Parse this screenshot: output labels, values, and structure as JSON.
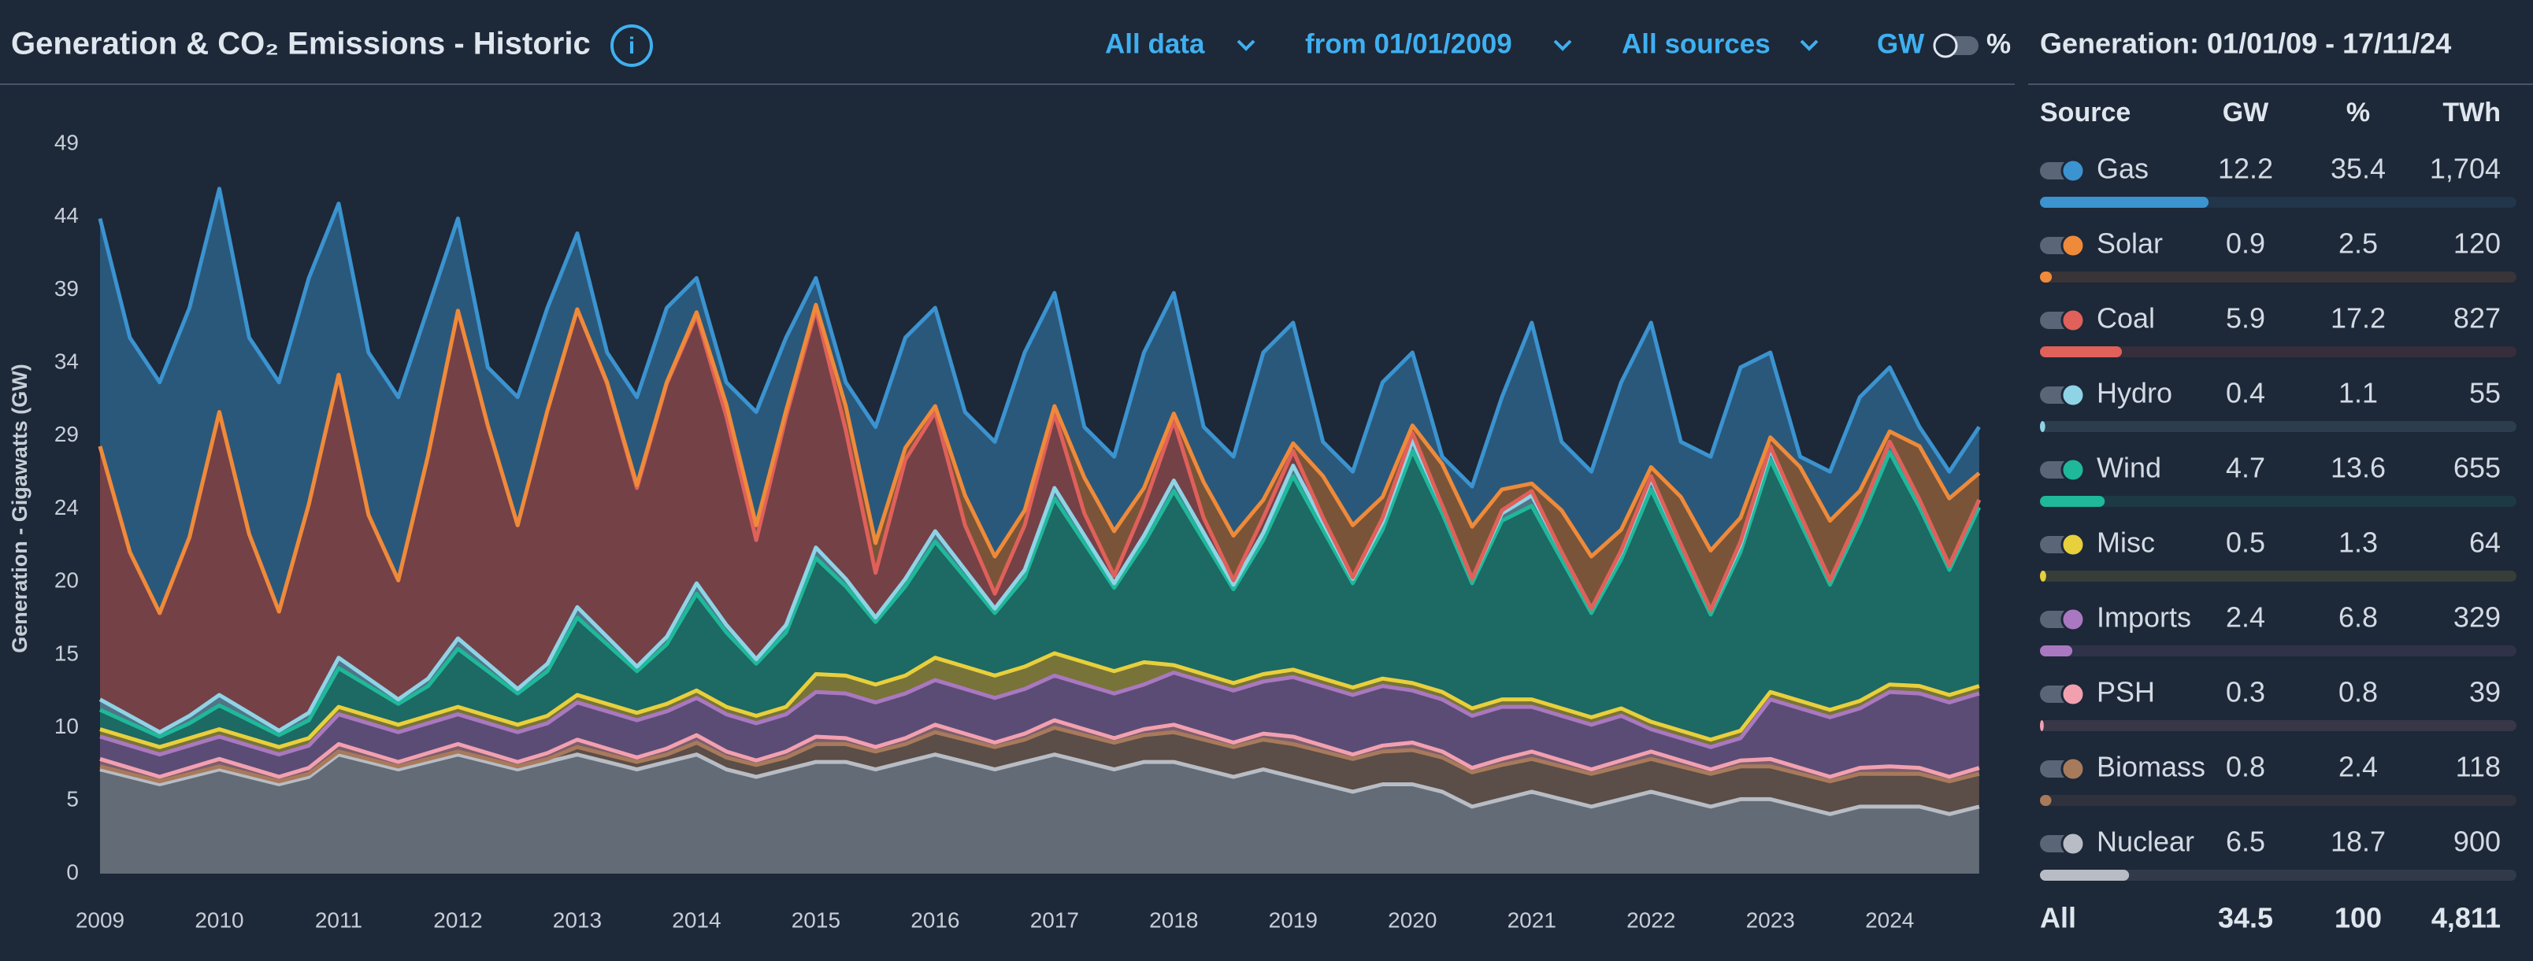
{
  "header": {
    "title": "Generation & CO₂ Emissions - Historic",
    "controls": [
      "All data",
      "from 01/01/2009",
      "All sources"
    ],
    "unit_toggle": [
      "GW",
      "%"
    ]
  },
  "chart_data": {
    "type": "area",
    "stacked": true,
    "y_label": "Generation - Gigawatts (GW)",
    "x": [
      2009,
      2009.25,
      2009.5,
      2009.75,
      2010,
      2010.25,
      2010.5,
      2010.75,
      2011,
      2011.25,
      2011.5,
      2011.75,
      2012,
      2012.25,
      2012.5,
      2012.75,
      2013,
      2013.25,
      2013.5,
      2013.75,
      2014,
      2014.25,
      2014.5,
      2014.75,
      2015,
      2015.25,
      2015.5,
      2015.75,
      2016,
      2016.25,
      2016.5,
      2016.75,
      2017,
      2017.25,
      2017.5,
      2017.75,
      2018,
      2018.25,
      2018.5,
      2018.75,
      2019,
      2019.25,
      2019.5,
      2019.75,
      2020,
      2020.25,
      2020.5,
      2020.75,
      2021,
      2021.25,
      2021.5,
      2021.75,
      2022,
      2022.25,
      2022.5,
      2022.75,
      2023,
      2023.25,
      2023.5,
      2023.75,
      2024,
      2024.25,
      2024.5,
      2024.75
    ],
    "xlim": [
      2009,
      2024.87
    ],
    "xticks": [
      2009,
      2010,
      2011,
      2012,
      2013,
      2014,
      2015,
      2016,
      2017,
      2018,
      2019,
      2020,
      2021,
      2022,
      2023,
      2024
    ],
    "ylim": [
      0,
      49
    ],
    "yticks": [
      0,
      {
        "value": 4.9,
        "label": "5"
      },
      {
        "value": 9.8,
        "label": "10"
      },
      {
        "value": 14.7,
        "label": "15"
      },
      {
        "value": 19.6,
        "label": "20"
      },
      {
        "value": 24.5,
        "label": "24"
      },
      {
        "value": 29.4,
        "label": "29"
      },
      {
        "value": 34.3,
        "label": "34"
      },
      {
        "value": 39.2,
        "label": "39"
      },
      {
        "value": 44.1,
        "label": "44"
      },
      49
    ],
    "series": [
      {
        "name": "Gas",
        "color": "#3b93cf",
        "values": [
          15.3,
          14.4,
          15.5,
          15.4,
          15,
          13.2,
          15.4,
          15.2,
          11.5,
          10.9,
          12.3,
          9.9,
          6.2,
          3.9,
          8.6,
          6.9,
          5.1,
          2,
          5.9,
          5,
          2.3,
          1.5,
          7.6,
          4.9,
          1.8,
          1.6,
          7.8,
          7.4,
          6.6,
          5.6,
          7.7,
          10.6,
          7.6,
          3.4,
          5,
          9.1,
          8.1,
          3.7,
          5.3,
          9.9,
          8.1,
          2.3,
          3.6,
          7.7,
          4.9,
          0.5,
          2.7,
          6.2,
          10.8,
          4.6,
          5.7,
          9.9,
          9.7,
          3.7,
          6.3,
          10.1,
          5.7,
          0.7,
          3.3,
          6.3,
          4.3,
          1.3,
          1.8,
          3.1
        ]
      },
      {
        "name": "Solar",
        "color": "#ee8a3a",
        "values": [
          0,
          0,
          0,
          0,
          0,
          0,
          0,
          0,
          0,
          0,
          0,
          0,
          0,
          0,
          0,
          0,
          0,
          0.1,
          0.2,
          0.1,
          0.2,
          0.8,
          1,
          0.4,
          0.3,
          1.6,
          2,
          0.8,
          0.4,
          2,
          2.5,
          1,
          0.5,
          2.4,
          3,
          1.2,
          0.5,
          2.4,
          3,
          1.2,
          0.5,
          2.8,
          3.5,
          1.4,
          0.5,
          2.8,
          3.5,
          1.4,
          0.5,
          2.8,
          3.5,
          1.4,
          0.6,
          3.2,
          4,
          1.6,
          0.6,
          3.2,
          4,
          1.6,
          0.7,
          3.6,
          4.5,
          1.8
        ]
      },
      {
        "name": "Coal",
        "color": "#e0605a",
        "values": [
          17,
          11,
          8,
          12,
          19,
          12,
          8,
          14,
          19,
          11,
          8,
          15,
          22,
          16,
          11,
          17,
          20,
          17,
          12,
          17,
          18,
          14,
          8,
          14,
          16,
          10,
          3,
          8,
          8,
          3,
          1,
          3,
          5,
          1.5,
          0.5,
          2,
          4,
          1,
          0.3,
          1,
          1,
          0.3,
          0.1,
          0.3,
          0.5,
          0,
          0,
          0.2,
          0.3,
          0,
          0,
          0.1,
          0.2,
          0,
          0,
          0.2,
          0.2,
          0,
          0,
          0,
          0,
          0,
          0,
          0
        ]
      },
      {
        "name": "Hydro",
        "color": "#8fd3e6",
        "values": [
          0.7,
          0.5,
          0.3,
          0.5,
          0.7,
          0.5,
          0.3,
          0.5,
          0.7,
          0.5,
          0.3,
          0.5,
          0.7,
          0.5,
          0.3,
          0.5,
          0.7,
          0.5,
          0.3,
          0.5,
          0.7,
          0.5,
          0.3,
          0.5,
          0.7,
          0.5,
          0.3,
          0.5,
          0.7,
          0.5,
          0.3,
          0.5,
          0.7,
          0.5,
          0.3,
          0.5,
          0.7,
          0.5,
          0.3,
          0.5,
          0.7,
          0.5,
          0.3,
          0.5,
          0.7,
          0.5,
          0.3,
          0.5,
          0.7,
          0.5,
          0.3,
          0.5,
          0.7,
          0.5,
          0.3,
          0.5,
          0.7,
          0.5,
          0.3,
          0.5,
          0.7,
          0.5,
          0.3,
          0.5
        ]
      },
      {
        "name": "Wind",
        "color": "#1fb89a",
        "values": [
          1.3,
          1,
          0.7,
          1,
          1.6,
          1.2,
          0.8,
          1.2,
          2.6,
          2,
          1.4,
          2,
          3.9,
          3,
          2.1,
          3,
          5.2,
          4,
          2.8,
          4,
          6.5,
          5,
          3.5,
          5,
          7.8,
          6,
          4.2,
          6,
          7.8,
          6,
          4.2,
          6,
          10.4,
          8,
          5.6,
          8,
          11.7,
          9,
          6.3,
          9,
          13,
          10,
          7,
          10,
          15.6,
          12,
          8.4,
          12,
          13,
          10,
          7,
          10,
          15.6,
          12,
          8.4,
          12,
          15.6,
          12,
          8.4,
          12,
          15.6,
          12,
          8.4,
          12
        ]
      },
      {
        "name": "Misc",
        "color": "#e8cf3c",
        "values": [
          0.5,
          0.5,
          0.5,
          0.5,
          0.5,
          0.5,
          0.5,
          0.5,
          0.5,
          0.5,
          0.5,
          0.5,
          0.5,
          0.5,
          0.5,
          0.5,
          0.5,
          0.5,
          0.5,
          0.5,
          0.5,
          0.5,
          0.5,
          0.5,
          1.2,
          1.2,
          1.2,
          1.2,
          1.5,
          1.5,
          1.5,
          1.5,
          1.5,
          1.5,
          1.5,
          1.5,
          0.5,
          0.5,
          0.5,
          0.5,
          0.5,
          0.5,
          0.5,
          0.5,
          0.5,
          0.5,
          0.5,
          0.5,
          0.5,
          0.5,
          0.5,
          0.5,
          0.5,
          0.5,
          0.5,
          0.5,
          0.5,
          0.5,
          0.5,
          0.5,
          0.5,
          0.5,
          0.5,
          0.5
        ]
      },
      {
        "name": "Imports",
        "color": "#a978c0",
        "values": [
          1.5,
          1.5,
          1.5,
          1.5,
          1.5,
          1.5,
          1.5,
          1.5,
          2,
          2,
          2,
          2,
          2,
          2,
          2,
          2,
          2.5,
          2.5,
          2.5,
          2.5,
          2.5,
          2.5,
          2.5,
          2.5,
          3,
          3,
          3,
          3,
          3,
          3,
          3,
          3,
          3,
          3,
          3,
          3,
          3.5,
          3.5,
          3.5,
          3.5,
          4,
          4,
          4,
          4,
          3.5,
          3.5,
          3.5,
          3.5,
          3,
          3,
          3,
          3,
          1.5,
          1.5,
          1.5,
          1.5,
          4,
          4,
          4,
          4,
          5,
          5,
          5,
          5
        ]
      },
      {
        "name": "PSH",
        "color": "#f2a0b0",
        "values": [
          0.5,
          0.4,
          0.3,
          0.4,
          0.5,
          0.4,
          0.3,
          0.4,
          0.5,
          0.4,
          0.3,
          0.4,
          0.5,
          0.4,
          0.3,
          0.4,
          0.5,
          0.4,
          0.3,
          0.4,
          0.5,
          0.4,
          0.3,
          0.4,
          0.5,
          0.4,
          0.3,
          0.4,
          0.5,
          0.4,
          0.3,
          0.4,
          0.5,
          0.4,
          0.3,
          0.4,
          0.5,
          0.4,
          0.3,
          0.4,
          0.5,
          0.4,
          0.3,
          0.4,
          0.5,
          0.4,
          0.3,
          0.4,
          0.5,
          0.4,
          0.3,
          0.4,
          0.5,
          0.4,
          0.3,
          0.4,
          0.5,
          0.4,
          0.3,
          0.4,
          0.5,
          0.4,
          0.3,
          0.4
        ]
      },
      {
        "name": "Biomass",
        "color": "#a87a5c",
        "values": [
          0.2,
          0.2,
          0.2,
          0.2,
          0.2,
          0.2,
          0.2,
          0.2,
          0.2,
          0.2,
          0.2,
          0.2,
          0.2,
          0.2,
          0.2,
          0.2,
          0.5,
          0.5,
          0.5,
          0.5,
          0.8,
          0.8,
          0.8,
          0.8,
          1.2,
          1.2,
          1.2,
          1.2,
          1.5,
          1.5,
          1.5,
          1.5,
          1.8,
          1.8,
          1.8,
          1.8,
          2,
          2,
          2,
          2,
          2.2,
          2.2,
          2.2,
          2.2,
          2.3,
          2.3,
          2.3,
          2.3,
          2.2,
          2.2,
          2.2,
          2.2,
          2.2,
          2.2,
          2.2,
          2.2,
          2.2,
          2.2,
          2.2,
          2.2,
          2.2,
          2.2,
          2.2,
          2.2
        ]
      },
      {
        "name": "Nuclear",
        "color": "#b8bcc4",
        "values": [
          7,
          6.5,
          6,
          6.5,
          7,
          6.5,
          6,
          6.5,
          8,
          7.5,
          7,
          7.5,
          8,
          7.5,
          7,
          7.5,
          8,
          7.5,
          7,
          7.5,
          8,
          7,
          6.5,
          7,
          7.5,
          7.5,
          7,
          7.5,
          8,
          7.5,
          7,
          7.5,
          8,
          7.5,
          7,
          7.5,
          7.5,
          7,
          6.5,
          7,
          6.5,
          6,
          5.5,
          6,
          6,
          5.5,
          4.5,
          5,
          5.5,
          5,
          4.5,
          5,
          5.5,
          5,
          4.5,
          5,
          5,
          4.5,
          4,
          4.5,
          4.5,
          4.5,
          4,
          4.5
        ]
      }
    ]
  },
  "side_panel": {
    "title": "Generation: 01/01/09 - 17/11/24",
    "columns": [
      "Source",
      "GW",
      "%",
      "TWh"
    ],
    "rows": [
      {
        "name": "Gas",
        "color": "#3b93cf",
        "gw": 12.2,
        "pct": 35.4,
        "twh": {
          "value": 1704,
          "label": "1,704"
        }
      },
      {
        "name": "Solar",
        "color": "#ee8a3a",
        "gw": 0.9,
        "pct": 2.5,
        "twh": 120
      },
      {
        "name": "Coal",
        "color": "#e0605a",
        "gw": 5.9,
        "pct": 17.2,
        "twh": 827
      },
      {
        "name": "Hydro",
        "color": "#8fd3e6",
        "gw": 0.4,
        "pct": 1.1,
        "twh": 55
      },
      {
        "name": "Wind",
        "color": "#1fb89a",
        "gw": 4.7,
        "pct": 13.6,
        "twh": 655
      },
      {
        "name": "Misc",
        "color": "#e8cf3c",
        "gw": 0.5,
        "pct": 1.3,
        "twh": 64
      },
      {
        "name": "Imports",
        "color": "#a978c0",
        "gw": 2.4,
        "pct": 6.8,
        "twh": 329
      },
      {
        "name": "PSH",
        "color": "#f2a0b0",
        "gw": 0.3,
        "pct": 0.8,
        "twh": 39
      },
      {
        "name": "Biomass",
        "color": "#a87a5c",
        "gw": 0.8,
        "pct": 2.4,
        "twh": 118
      },
      {
        "name": "Nuclear",
        "color": "#b8bcc4",
        "gw": 6.5,
        "pct": 18.7,
        "twh": 900
      }
    ],
    "total": {
      "name": "All",
      "gw": 34.5,
      "pct": 100,
      "twh": {
        "value": 4811,
        "label": "4,811"
      }
    }
  }
}
